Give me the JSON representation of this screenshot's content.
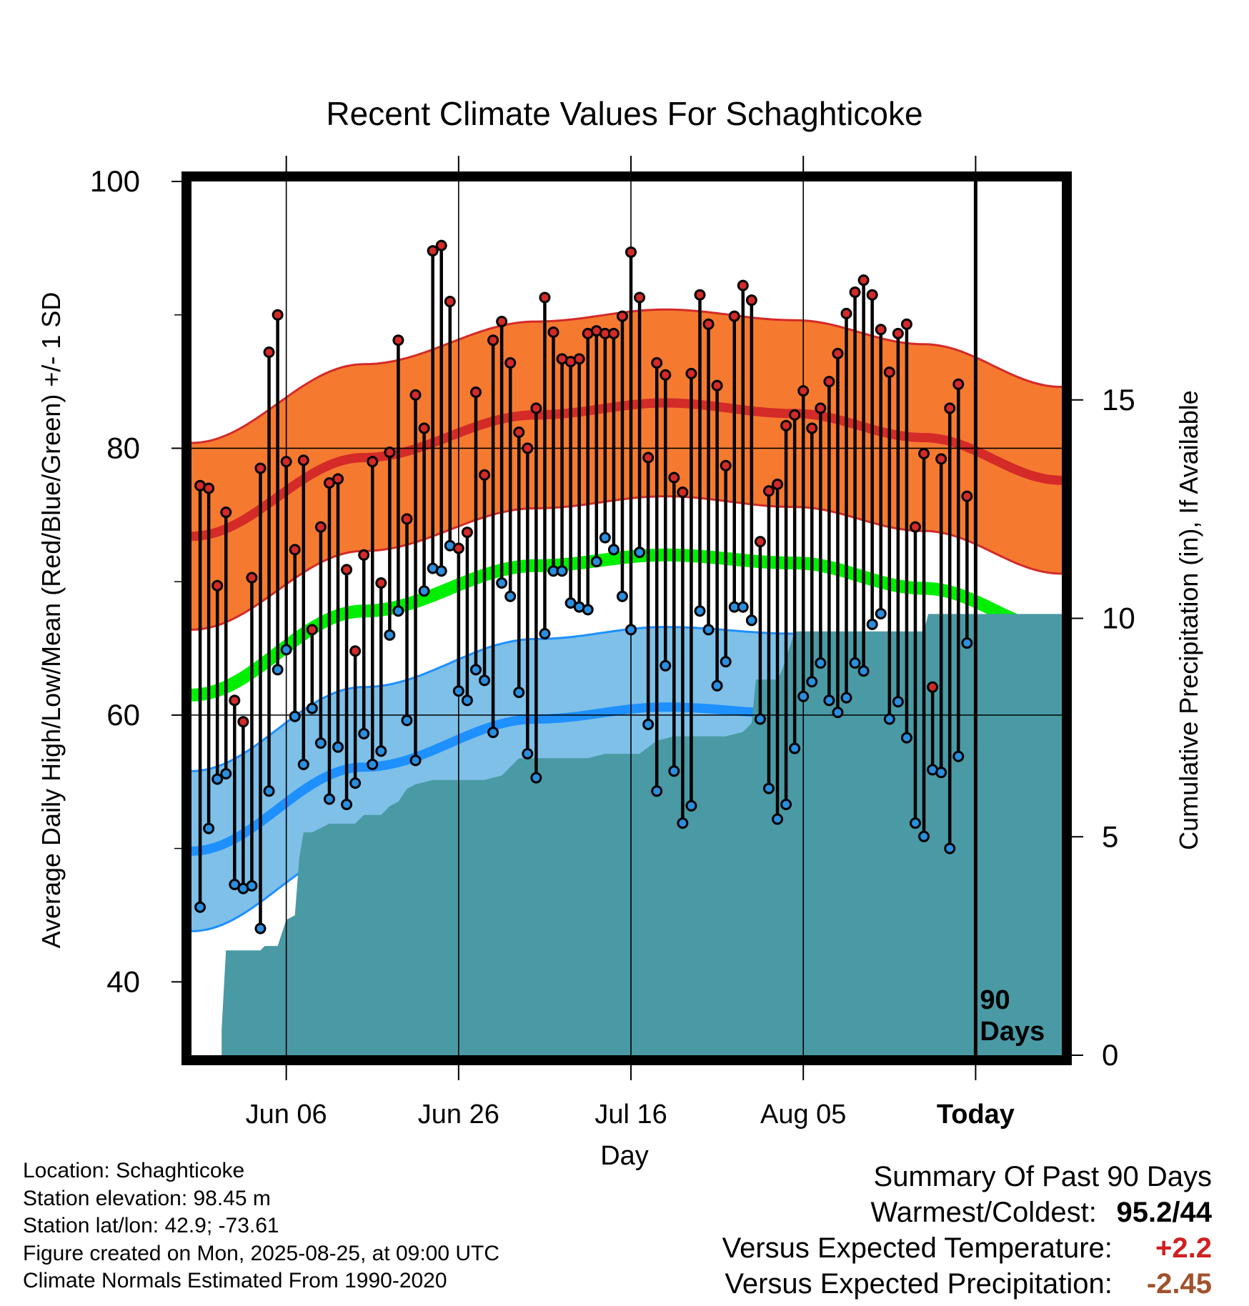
{
  "chart_data": {
    "type": "line",
    "title": "Recent Climate Values For Schaghticoke",
    "xlabel": "Day",
    "ylabel": "Average Daily High/Low/Mean (Red/Blue/Green) +/- 1 SD",
    "y2label": "Cumulative Precipitation (in), If Available",
    "ylim": [
      34.5,
      100
    ],
    "y2lim": [
      0,
      20
    ],
    "yticks": [
      "100",
      "80",
      "60",
      "40"
    ],
    "y2ticks": [
      "15",
      "10",
      "5",
      "0"
    ],
    "xticks": [
      "Jun 06",
      "Jun 26",
      "Jul 16",
      "Aug 05",
      "Today"
    ],
    "xtick_days": [
      11,
      31,
      51,
      71,
      91
    ],
    "xlim": [
      0,
      101
    ],
    "today_marker": "90\nDays",
    "grid": true,
    "colors": {
      "high": "#d42a28",
      "high_band": "#f57a30",
      "low": "#1e90ff",
      "low_band": "#7ec0e8",
      "mean": "#00ee00",
      "precip": "#4a9aa5",
      "frame": "#000000",
      "high_point": "#d42a28",
      "low_point": "#2a8fe0"
    },
    "normal_high": {
      "day": [
        0,
        20,
        40,
        55,
        70,
        85,
        101
      ],
      "value": [
        73.4,
        79.3,
        82.5,
        83.4,
        82.6,
        80.8,
        77.6
      ]
    },
    "normal_low": {
      "day": [
        0,
        20,
        40,
        55,
        70,
        85,
        101
      ],
      "value": [
        49.8,
        56.1,
        59.7,
        60.6,
        60.1,
        58.3,
        54.7
      ]
    },
    "normal_mean": {
      "day": [
        0,
        20,
        40,
        55,
        70,
        85,
        101
      ],
      "value": [
        61.5,
        67.8,
        71.2,
        72.0,
        71.4,
        69.5,
        66.3
      ]
    },
    "high_sd": 7.0,
    "low_sd": 6.0,
    "daily_high": [
      77.2,
      77.0,
      69.7,
      75.2,
      61.1,
      59.5,
      70.3,
      78.5,
      87.2,
      90.0,
      79.0,
      72.4,
      79.1,
      66.4,
      74.1,
      77.4,
      77.7,
      70.9,
      64.8,
      72.0,
      79.0,
      69.9,
      79.7,
      88.1,
      74.7,
      84.0,
      81.5,
      94.8,
      95.2,
      91.0,
      72.5,
      73.7,
      84.2,
      78.0,
      88.1,
      89.5,
      86.4,
      81.2,
      80.0,
      83.0,
      91.3,
      88.7,
      86.7,
      86.5,
      86.7,
      88.6,
      88.8,
      88.6,
      88.6,
      89.9,
      94.7,
      91.3,
      79.3,
      86.4,
      85.5,
      77.8,
      76.7,
      85.6,
      91.5,
      89.3,
      84.7,
      78.7,
      89.9,
      92.2,
      91.1,
      73.0,
      76.8,
      77.3,
      81.7,
      82.5,
      84.3,
      81.5,
      83.0,
      85.0,
      87.1,
      90.1,
      91.7,
      92.6,
      91.5,
      88.9,
      85.7,
      88.6,
      89.3,
      74.1,
      79.6,
      62.1,
      79.2,
      83.0,
      84.8,
      76.4
    ],
    "daily_low": [
      45.6,
      51.5,
      55.2,
      55.6,
      47.3,
      47.0,
      47.2,
      44.0,
      54.3,
      63.4,
      64.9,
      59.9,
      56.3,
      60.5,
      57.9,
      53.7,
      57.6,
      53.3,
      54.9,
      58.6,
      56.3,
      57.3,
      66.0,
      67.8,
      59.6,
      56.6,
      69.3,
      71.0,
      70.8,
      72.7,
      61.8,
      61.1,
      63.4,
      62.6,
      58.7,
      69.9,
      68.9,
      61.7,
      57.1,
      55.3,
      66.1,
      70.8,
      70.8,
      68.4,
      68.1,
      67.9,
      71.5,
      73.3,
      72.4,
      68.9,
      66.4,
      72.2,
      59.3,
      54.3,
      63.7,
      55.8,
      51.9,
      53.2,
      67.8,
      66.4,
      62.2,
      64.0,
      68.1,
      68.1,
      67.1,
      59.7,
      54.5,
      52.2,
      53.3,
      57.5,
      61.4,
      62.5,
      63.9,
      61.1,
      60.2,
      61.3,
      63.9,
      63.3,
      66.8,
      67.6,
      59.7,
      61.0,
      58.3,
      51.9,
      50.9,
      55.9,
      55.7,
      50.0,
      56.9,
      65.4
    ],
    "precip_step": {
      "day": [
        0,
        3.5,
        3.5,
        4,
        8,
        8.5,
        9,
        10,
        10.5,
        11,
        12,
        12.5,
        13,
        14,
        15,
        16,
        18,
        19,
        20,
        22,
        23,
        24,
        25,
        26,
        28,
        30,
        32,
        34,
        36,
        38,
        40,
        42,
        44,
        46,
        48,
        50,
        52,
        54,
        56,
        58,
        60,
        62,
        64,
        65,
        65.5,
        68,
        68.5,
        70,
        72,
        74,
        76,
        78,
        80,
        82,
        84,
        85,
        85.5,
        88,
        90,
        92,
        94,
        96,
        98,
        100,
        101
      ],
      "value": [
        0,
        0,
        0.6,
        2.4,
        2.4,
        2.5,
        2.5,
        2.5,
        2.8,
        3.1,
        3.2,
        4.5,
        5.1,
        5.1,
        5.2,
        5.3,
        5.3,
        5.3,
        5.5,
        5.5,
        5.7,
        5.8,
        6.1,
        6.2,
        6.3,
        6.3,
        6.3,
        6.3,
        6.4,
        6.8,
        6.8,
        6.8,
        6.8,
        6.8,
        6.9,
        6.9,
        6.9,
        7.2,
        7.3,
        7.3,
        7.3,
        7.3,
        7.4,
        7.6,
        8.6,
        8.6,
        8.8,
        9.7,
        9.7,
        9.7,
        9.7,
        9.7,
        9.7,
        9.7,
        9.7,
        9.7,
        10.1,
        10.1,
        10.1,
        10.1,
        10.1,
        10.1,
        10.1,
        10.1,
        10.1
      ]
    }
  },
  "info": {
    "location": "Location: Schaghticoke",
    "elevation": "Station elevation: 98.45 m",
    "latlon": "Station lat/lon: 42.9; -73.61",
    "created": "Figure created on Mon, 2025-08-25, at 09:00 UTC",
    "normals": "Climate Normals Estimated From 1990-2020"
  },
  "summary": {
    "title": "Summary Of Past 90 Days",
    "warmest_label": "Warmest/Coldest:",
    "warmest_high": "95.2",
    "warmest_sep": "/",
    "warmest_low": "44",
    "temp_label": "Versus Expected Temperature:",
    "temp_value": "+2.2",
    "precip_label": "Versus Expected Precipitation:",
    "precip_value": "-2.45"
  }
}
